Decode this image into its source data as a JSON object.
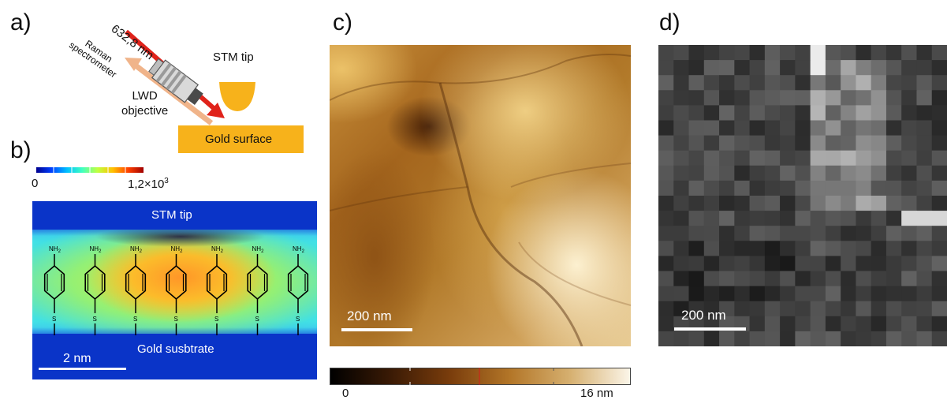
{
  "figure": {
    "panel_a": {
      "letter": "a)",
      "wavelength_label": "632,8 nm",
      "raman_label_line1": "Raman",
      "raman_label_line2": "spectrometer",
      "stm_tip_label": "STM tip",
      "objective_line1": "LWD",
      "objective_line2": "objective",
      "gold_surface_label": "Gold surface",
      "colors": {
        "laser": "#e0231b",
        "raman_beam": "#f0b48a",
        "gold": "#f7b21b"
      }
    },
    "panel_b": {
      "letter": "b)",
      "colorbar_min": "0",
      "colorbar_max": "1,2×10",
      "colorbar_max_exp": "3",
      "stm_tip_label": "STM tip",
      "substrate_label": "Gold susbtrate",
      "scalebar_label": "2 nm",
      "molecule_top_group": "NH",
      "molecule_top_sub": "2",
      "molecule_anchor": "S",
      "molecule_count": 7
    },
    "panel_c": {
      "letter": "c)",
      "scalebar_label": "200 nm",
      "colorbar_min": "0",
      "colorbar_max": "16 nm"
    },
    "panel_d": {
      "letter": "d)",
      "scalebar_label": "200 nm"
    }
  }
}
